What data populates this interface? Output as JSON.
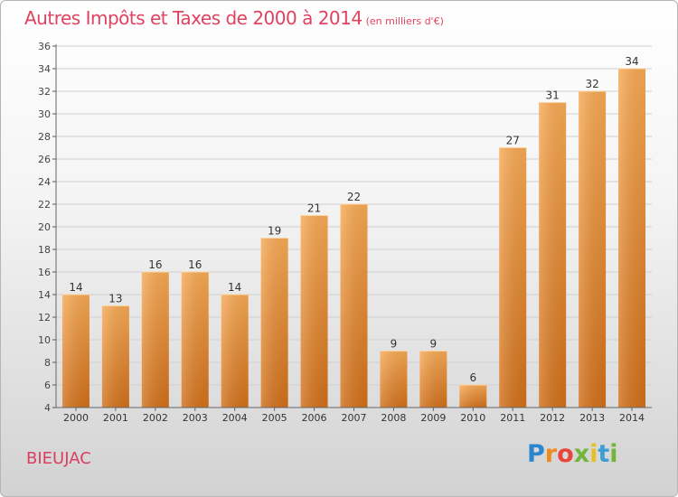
{
  "title": "Autres Impôts et Taxes de 2000 à 2014",
  "subtitle": "(en milliers d'€)",
  "commune": "BIEUJAC",
  "logo": {
    "text": "Proxiti"
  },
  "colors": {
    "bar_light": "#f7a650",
    "bar_dark": "#d46f18",
    "title": "#e0425f",
    "grid": "#cccccc"
  },
  "chart_data": {
    "type": "bar",
    "categories": [
      "2000",
      "2001",
      "2002",
      "2003",
      "2004",
      "2005",
      "2006",
      "2007",
      "2008",
      "2009",
      "2010",
      "2011",
      "2012",
      "2013",
      "2014"
    ],
    "values": [
      14,
      13,
      16,
      16,
      14,
      19,
      21,
      22,
      9,
      9,
      6,
      27,
      31,
      32,
      34
    ],
    "ylim": [
      4,
      36
    ],
    "yticks": [
      4,
      6,
      8,
      10,
      12,
      14,
      16,
      18,
      20,
      22,
      24,
      26,
      28,
      30,
      32,
      34,
      36
    ],
    "grid": true
  }
}
